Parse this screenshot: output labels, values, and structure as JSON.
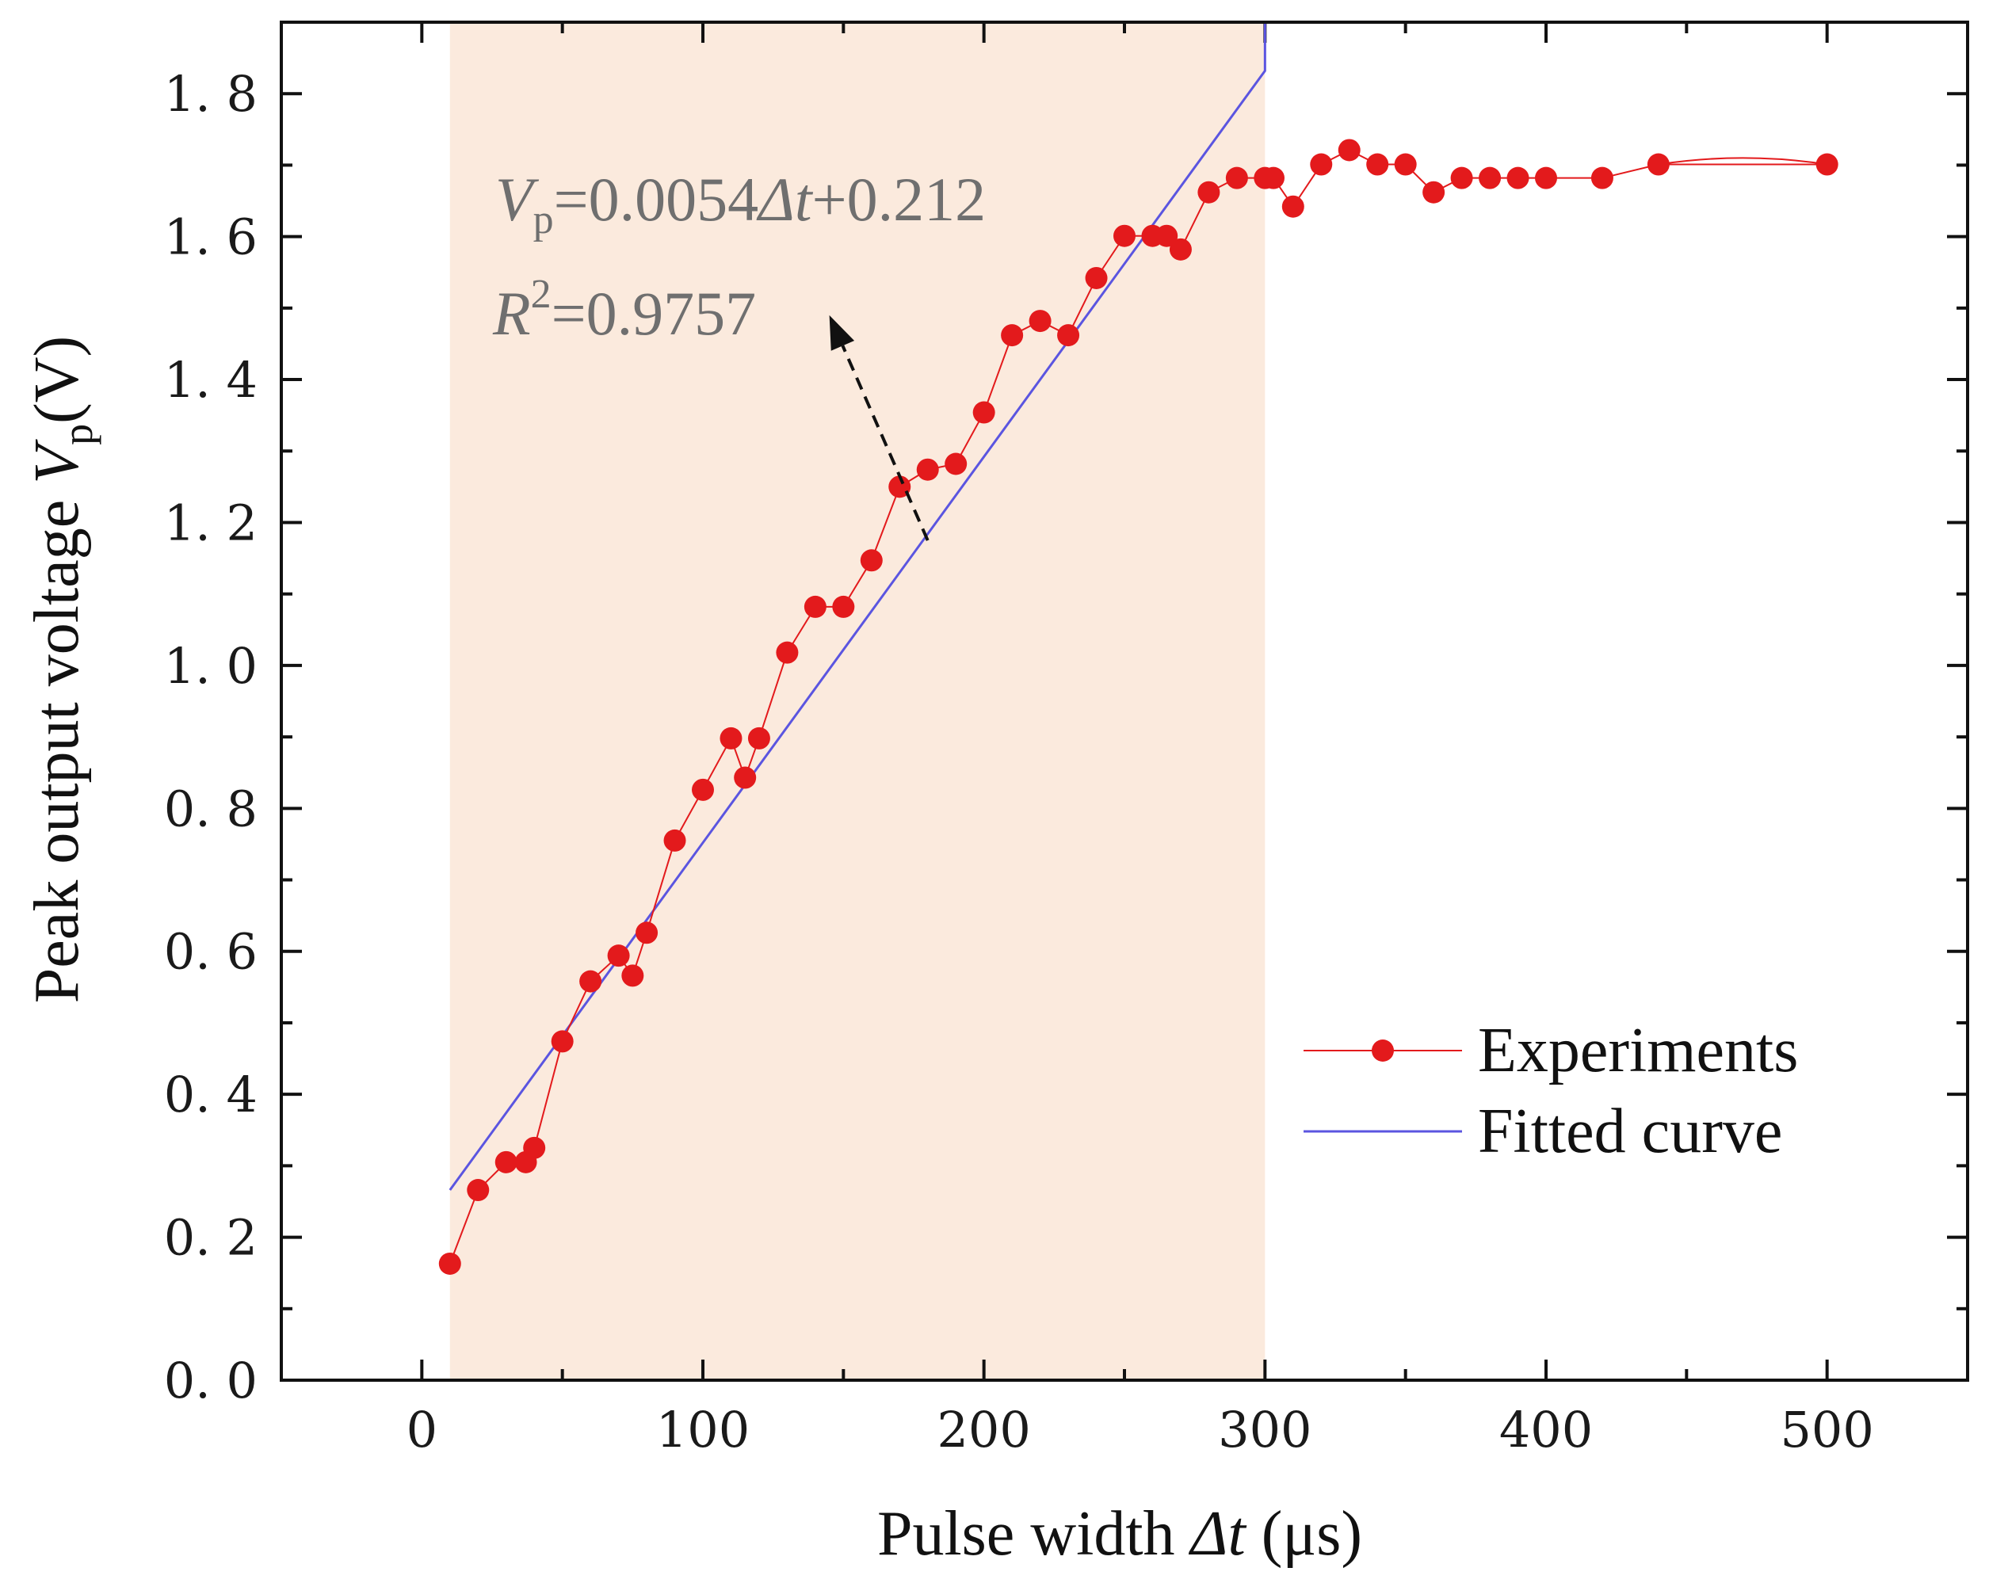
{
  "chart_data": {
    "type": "line",
    "xlabel_main": "Pulse width ",
    "xlabel_var": "Δt",
    "xlabel_unit": " (μs)",
    "ylabel_main": "Peak output voltage ",
    "ylabel_var": "V",
    "ylabel_sub": "p",
    "ylabel_unit": "(V)",
    "xlim": [
      -50,
      550
    ],
    "ylim": [
      0.0,
      1.9
    ],
    "xticks": [
      0,
      100,
      200,
      300,
      400,
      500
    ],
    "xtick_labels": [
      "0",
      "100",
      "200",
      "300",
      "400",
      "500"
    ],
    "yticks": [
      0.0,
      0.2,
      0.4,
      0.6,
      0.8,
      1.0,
      1.2,
      1.4,
      1.6,
      1.8
    ],
    "ytick_labels": [
      "0. 0",
      "0. 2",
      "0. 4",
      "0. 6",
      "0. 8",
      "1. 0",
      "1. 2",
      "1. 4",
      "1. 6",
      "1. 8"
    ],
    "shaded_region": {
      "x": [
        10,
        300
      ],
      "color": "#fbeadd"
    },
    "series": [
      {
        "name": "Experiments",
        "color": "#e31a1c",
        "x": [
          10,
          20,
          30,
          37,
          40,
          50,
          60,
          70,
          75,
          80,
          90,
          100,
          110,
          115,
          120,
          130,
          140,
          150,
          160,
          170,
          180,
          190,
          200,
          210,
          220,
          230,
          240,
          250,
          260,
          265,
          270,
          280,
          290,
          300,
          303,
          310,
          320,
          330,
          340,
          350,
          360,
          370,
          380,
          390,
          400,
          420,
          440,
          500
        ],
        "values": [
          0.163,
          0.266,
          0.305,
          0.305,
          0.325,
          0.474,
          0.558,
          0.594,
          0.566,
          0.626,
          0.755,
          0.826,
          0.898,
          0.843,
          0.898,
          1.018,
          1.082,
          1.082,
          1.147,
          1.25,
          1.274,
          1.282,
          1.354,
          1.462,
          1.482,
          1.462,
          1.542,
          1.601,
          1.601,
          1.601,
          1.582,
          1.662,
          1.682,
          1.682,
          1.682,
          1.642,
          1.701,
          1.721,
          1.701,
          1.701,
          1.662,
          1.682,
          1.682,
          1.682,
          1.682,
          1.682,
          1.701,
          1.701
        ],
        "curve_tail": {
          "x": [
            440,
            460,
            480,
            500
          ],
          "values": [
            1.701,
            1.713,
            1.713,
            1.701
          ]
        }
      },
      {
        "name": "Fitted curve",
        "color": "#5b55e0",
        "x": [
          10,
          300
        ],
        "values": [
          0.266,
          1.832
        ],
        "vertical_tail": {
          "x": 300,
          "from": 1.832,
          "to": 1.9
        }
      }
    ],
    "annotations": [
      {
        "lead": "V",
        "sub": "p",
        "rest": "=0.0054",
        "var": "Δt",
        "tail": "+0.212"
      },
      {
        "lead": "R",
        "sup": "2",
        "rest": "=0.9757"
      }
    ],
    "annotation_arrow": {
      "from": [
        180,
        1.175
      ],
      "to": [
        145,
        1.49
      ]
    },
    "legend": {
      "position": "bottom-right"
    }
  }
}
